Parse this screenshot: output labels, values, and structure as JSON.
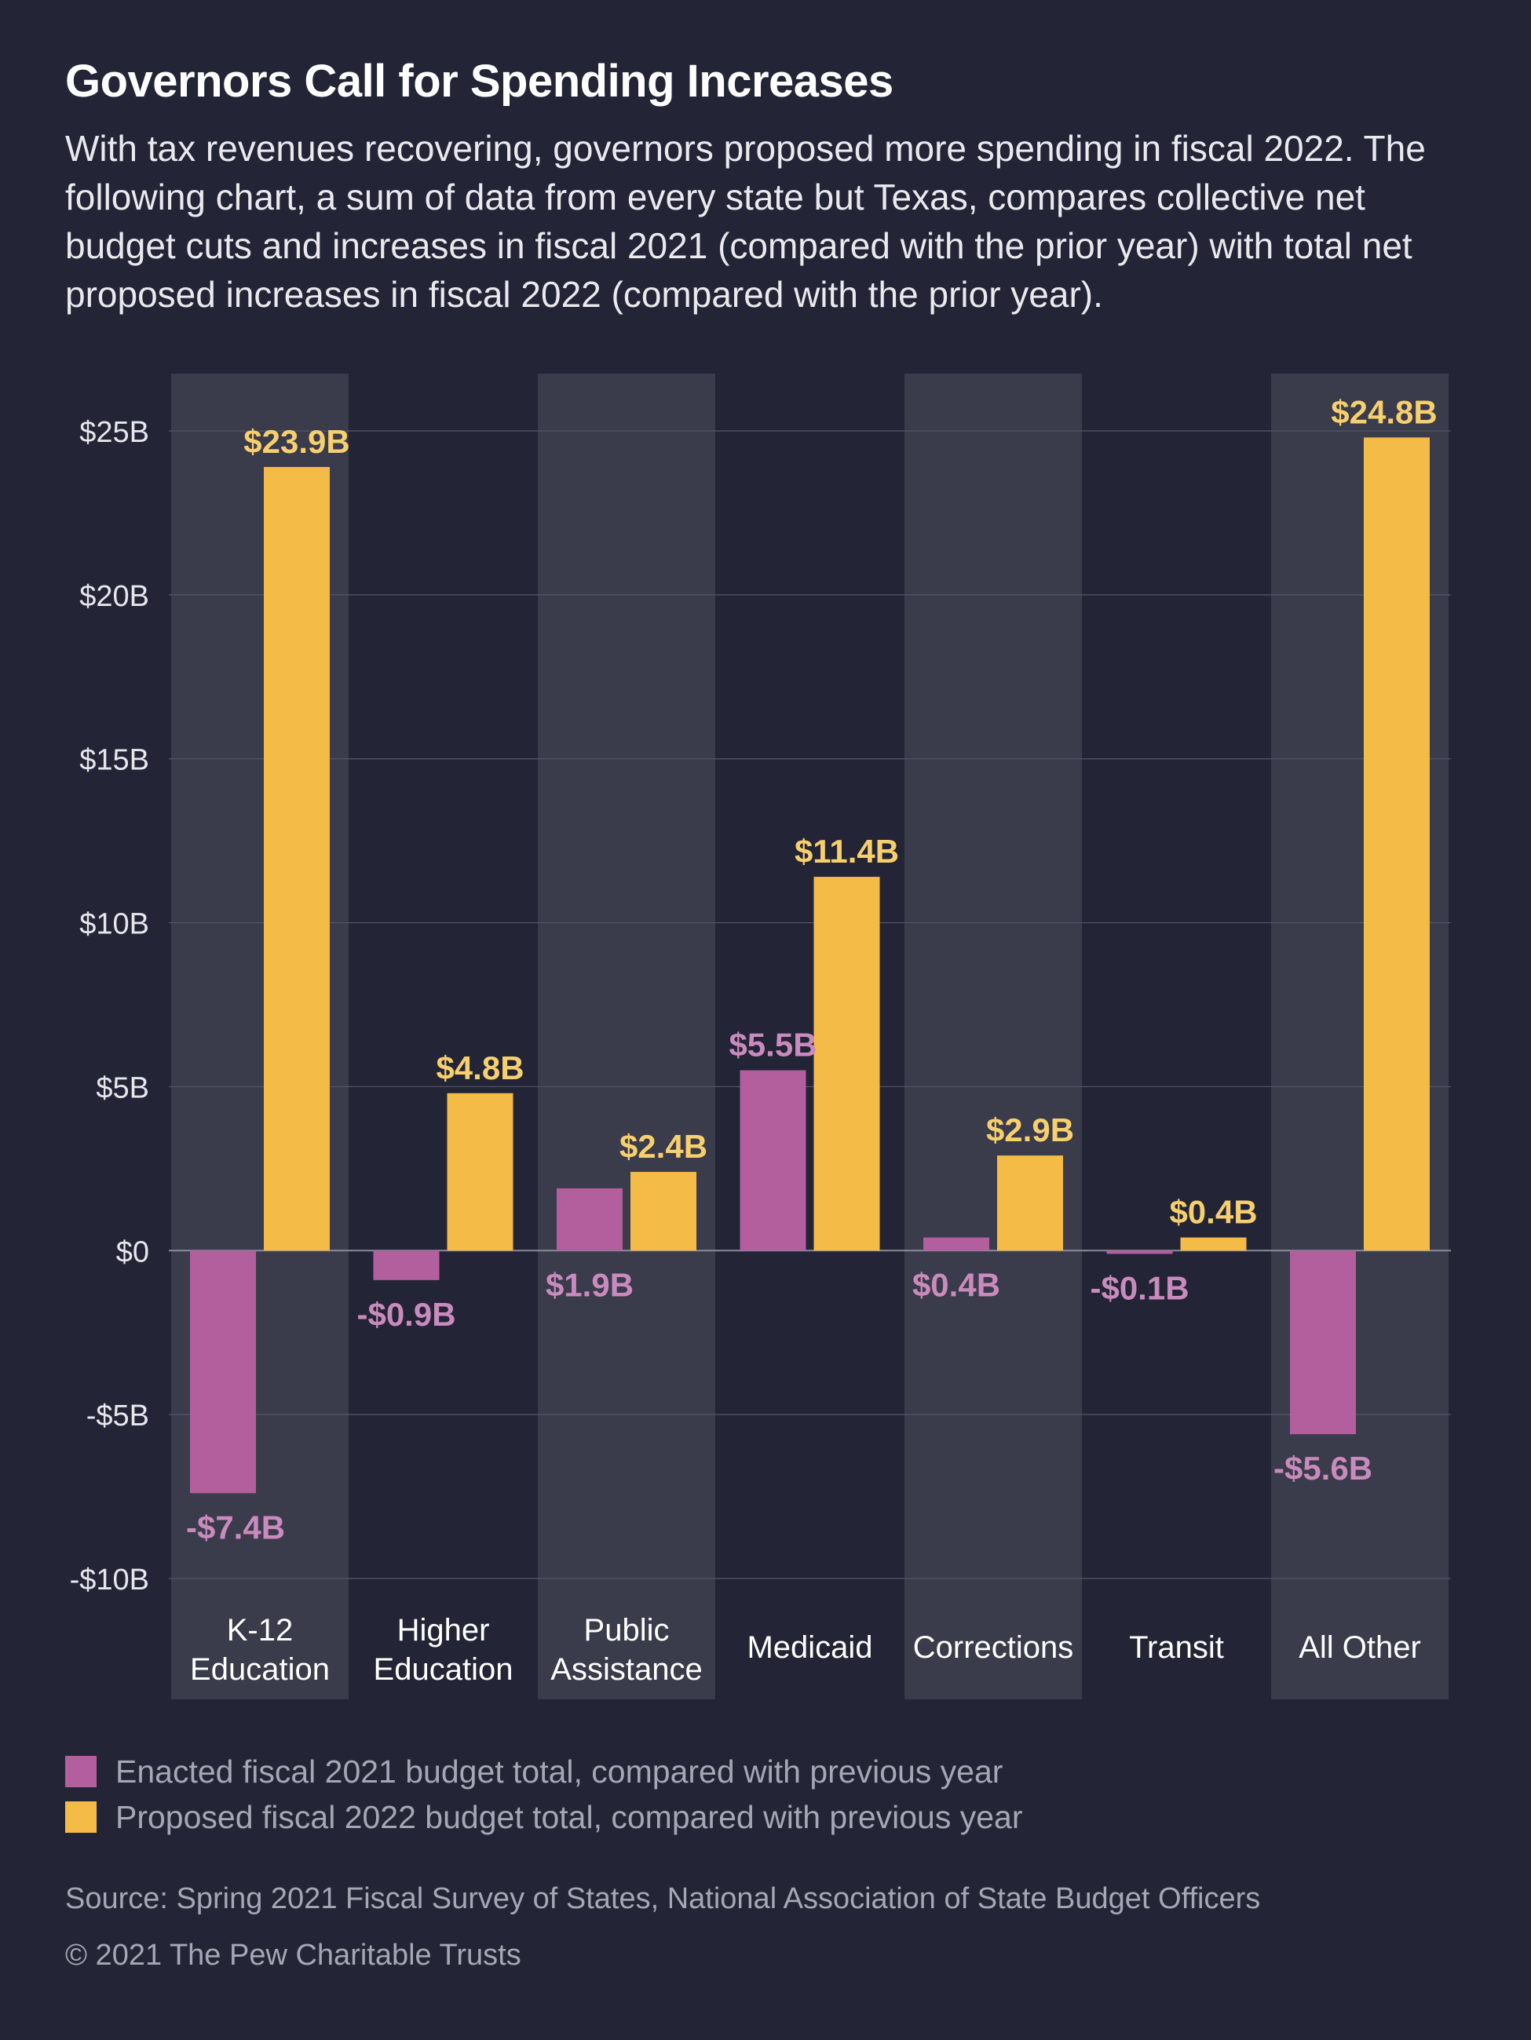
{
  "header": {
    "title": "Governors Call for Spending Increases",
    "subtitle": "With tax revenues recovering, governors proposed more spending in fiscal 2022. The following chart, a sum of data from every state but Texas, compares collective net budget cuts and increases in fiscal 2021 (compared with the prior year) with total net proposed increases in fiscal 2022 (compared with the prior year)."
  },
  "colors": {
    "background": "#232536",
    "band": "#3a3b4b",
    "grid": "#55566a",
    "enacted": "#b35f9d",
    "enacted_label": "#c98bbd",
    "proposed": "#f4bc46",
    "proposed_label": "#f6cf6e",
    "axis_text": "#e6e6ec",
    "category_text": "#ffffff"
  },
  "chart_data": {
    "type": "bar",
    "categories": [
      [
        "K-12",
        "Education"
      ],
      [
        "Higher",
        "Education"
      ],
      [
        "Public",
        "Assistance"
      ],
      [
        "Medicaid"
      ],
      [
        "Corrections"
      ],
      [
        "Transit"
      ],
      [
        "All Other"
      ]
    ],
    "series": [
      {
        "name": "Enacted fiscal 2021 budget total, compared with previous year",
        "values": [
          -7.4,
          -0.9,
          1.9,
          5.5,
          0.4,
          -0.1,
          -5.6
        ],
        "labels": [
          "-$7.4B",
          "-$0.9B",
          "$1.9B",
          "$5.5B",
          "$0.4B",
          "-$0.1B",
          "-$5.6B"
        ]
      },
      {
        "name": "Proposed fiscal 2022 budget total, compared with previous year",
        "values": [
          23.9,
          4.8,
          2.4,
          11.4,
          2.9,
          0.4,
          24.8
        ],
        "labels": [
          "$23.9B",
          "$4.8B",
          "$2.4B",
          "$11.4B",
          "$2.9B",
          "$0.4B",
          "$24.8B"
        ]
      }
    ],
    "y_ticks": [
      25,
      20,
      15,
      10,
      5,
      0,
      -5,
      -10
    ],
    "y_tick_labels": [
      "$25B",
      "$20B",
      "$15B",
      "$10B",
      "$5B",
      "$0",
      "-$5B",
      "-$10B"
    ],
    "ylim": [
      -10,
      25
    ],
    "xlabel": "",
    "ylabel": "",
    "grid": true,
    "alternating_bands": true
  },
  "legend": {
    "items": [
      "Enacted fiscal 2021 budget total, compared with previous year",
      "Proposed fiscal 2022 budget total, compared with previous year"
    ]
  },
  "footer": {
    "source": "Source: Spring 2021 Fiscal Survey of States, National Association of State Budget Officers",
    "copyright": "© 2021 The Pew Charitable Trusts"
  }
}
